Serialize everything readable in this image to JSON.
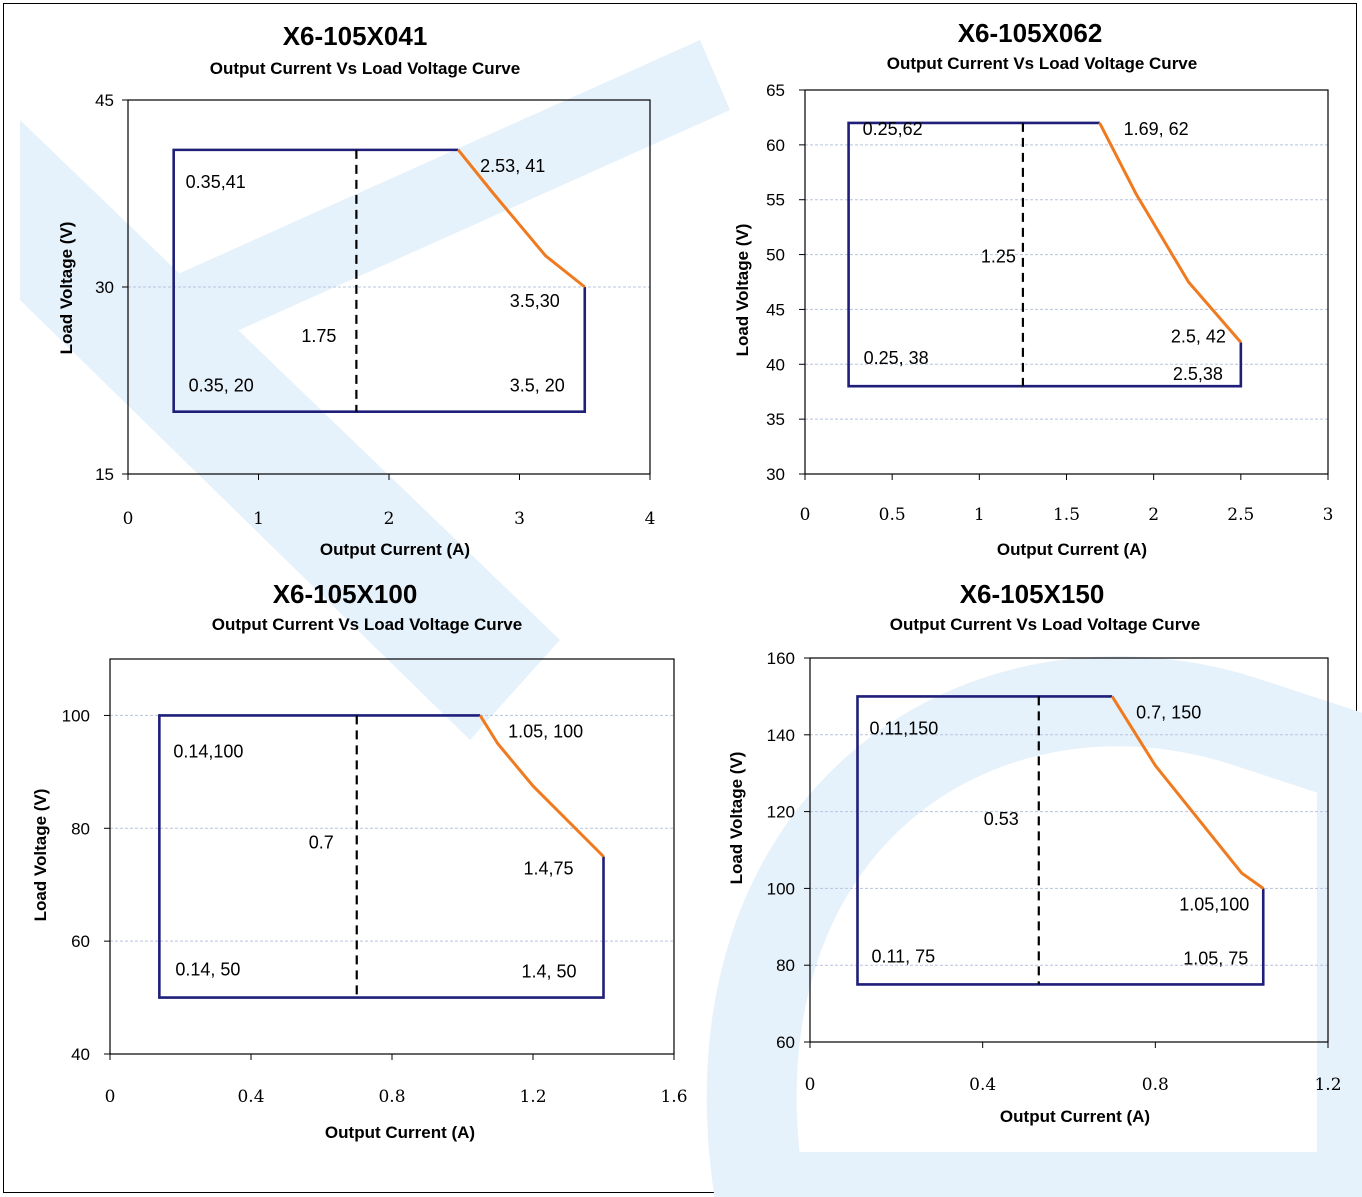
{
  "colors": {
    "envelope": "#1f1f7a",
    "derating": "#f07a1f",
    "divider": "#000000",
    "grid": "#b8c4dc",
    "watermark": "#e6f2fb"
  },
  "chart_data": [
    {
      "type": "line",
      "title": "X6-105X041",
      "subtitle": "Output Current Vs Load Voltage Curve",
      "xlabel": "Output Current (A)",
      "ylabel": "Load Voltage (V)",
      "xlim": [
        0,
        4
      ],
      "ylim": [
        15,
        45
      ],
      "xticks": [
        "0",
        "1",
        "2",
        "3",
        "4"
      ],
      "yticks": [
        "15",
        "30",
        "45"
      ],
      "grid": "horizontal",
      "envelope": [
        [
          2.53,
          41
        ],
        [
          0.35,
          41
        ],
        [
          0.35,
          20
        ],
        [
          3.5,
          20
        ],
        [
          3.5,
          30
        ]
      ],
      "derating": [
        [
          2.53,
          41
        ],
        [
          2.8,
          37.5
        ],
        [
          3.2,
          32.5
        ],
        [
          3.5,
          30
        ]
      ],
      "divider_x": 1.75,
      "annotations": [
        {
          "text": "0.35,41",
          "x": 0.35,
          "y": 41
        },
        {
          "text": "2.53, 41",
          "x": 2.53,
          "y": 41
        },
        {
          "text": "1.75",
          "x": 1.75,
          "y": 28
        },
        {
          "text": "3.5,30",
          "x": 3.5,
          "y": 30
        },
        {
          "text": "0.35, 20",
          "x": 0.35,
          "y": 20
        },
        {
          "text": "3.5, 20",
          "x": 3.5,
          "y": 20
        }
      ]
    },
    {
      "type": "line",
      "title": "X6-105X062",
      "subtitle": "Output Current Vs Load Voltage Curve",
      "xlabel": "Output Current (A)",
      "ylabel": "Load Voltage (V)",
      "xlim": [
        0,
        3
      ],
      "ylim": [
        30,
        65
      ],
      "xticks": [
        "0",
        "0.5",
        "1",
        "1.5",
        "2",
        "2.5",
        "3"
      ],
      "yticks": [
        "30",
        "35",
        "40",
        "45",
        "50",
        "55",
        "60",
        "65"
      ],
      "grid": "horizontal",
      "envelope": [
        [
          1.69,
          62
        ],
        [
          0.25,
          62
        ],
        [
          0.25,
          38
        ],
        [
          2.5,
          38
        ],
        [
          2.5,
          42
        ]
      ],
      "derating": [
        [
          1.69,
          62
        ],
        [
          1.9,
          55.5
        ],
        [
          2.2,
          47.5
        ],
        [
          2.5,
          42
        ]
      ],
      "divider_x": 1.25,
      "annotations": [
        {
          "text": "0.25,62",
          "x": 0.25,
          "y": 62
        },
        {
          "text": "1.69, 62",
          "x": 1.69,
          "y": 62
        },
        {
          "text": "1.25",
          "x": 1.25,
          "y": 48
        },
        {
          "text": "2.5, 42",
          "x": 2.5,
          "y": 42
        },
        {
          "text": "0.25, 38",
          "x": 0.25,
          "y": 38
        },
        {
          "text": "2.5,38",
          "x": 2.5,
          "y": 38
        }
      ]
    },
    {
      "type": "line",
      "title": "X6-105X100",
      "subtitle": "Output Current Vs Load Voltage Curve",
      "xlabel": "Output Current (A)",
      "ylabel": "Load Voltage (V)",
      "xlim": [
        0,
        1.6
      ],
      "ylim": [
        40,
        110
      ],
      "xticks": [
        "0",
        "0.4",
        "0.8",
        "1.2",
        "1.6"
      ],
      "yticks": [
        "40",
        "60",
        "80",
        "100"
      ],
      "grid": "horizontal",
      "envelope": [
        [
          1.05,
          100
        ],
        [
          0.14,
          100
        ],
        [
          0.14,
          50
        ],
        [
          1.4,
          50
        ],
        [
          1.4,
          75
        ]
      ],
      "derating": [
        [
          1.05,
          100
        ],
        [
          1.1,
          95
        ],
        [
          1.2,
          87.5
        ],
        [
          1.4,
          75
        ]
      ],
      "divider_x": 0.7,
      "annotations": [
        {
          "text": "0.14,100",
          "x": 0.14,
          "y": 100
        },
        {
          "text": "1.05, 100",
          "x": 1.05,
          "y": 100
        },
        {
          "text": "0.7",
          "x": 0.7,
          "y": 75
        },
        {
          "text": "1.4,75",
          "x": 1.4,
          "y": 75
        },
        {
          "text": "0.14, 50",
          "x": 0.14,
          "y": 50
        },
        {
          "text": "1.4, 50",
          "x": 1.4,
          "y": 50
        }
      ]
    },
    {
      "type": "line",
      "title": "X6-105X150",
      "subtitle": "Output Current Vs Load Voltage Curve",
      "xlabel": "Output Current (A)",
      "ylabel": "Load Voltage (V)",
      "xlim": [
        0,
        1.2
      ],
      "ylim": [
        60,
        160
      ],
      "xticks": [
        "0",
        "0.4",
        "0.8",
        "1.2"
      ],
      "yticks": [
        "60",
        "80",
        "100",
        "120",
        "140",
        "160"
      ],
      "grid": "horizontal",
      "envelope": [
        [
          0.7,
          150
        ],
        [
          0.11,
          150
        ],
        [
          0.11,
          75
        ],
        [
          1.05,
          75
        ],
        [
          1.05,
          100
        ]
      ],
      "derating": [
        [
          0.7,
          150
        ],
        [
          0.8,
          132
        ],
        [
          0.9,
          118
        ],
        [
          1.0,
          104
        ],
        [
          1.05,
          100
        ]
      ],
      "divider_x": 0.53,
      "annotations": [
        {
          "text": "0.11,150",
          "x": 0.11,
          "y": 150
        },
        {
          "text": "0.7, 150",
          "x": 0.7,
          "y": 150
        },
        {
          "text": "0.53",
          "x": 0.53,
          "y": 115
        },
        {
          "text": "1.05,100",
          "x": 1.05,
          "y": 100
        },
        {
          "text": "0.11, 75",
          "x": 0.11,
          "y": 75
        },
        {
          "text": "1.05, 75",
          "x": 1.05,
          "y": 75
        }
      ]
    }
  ]
}
